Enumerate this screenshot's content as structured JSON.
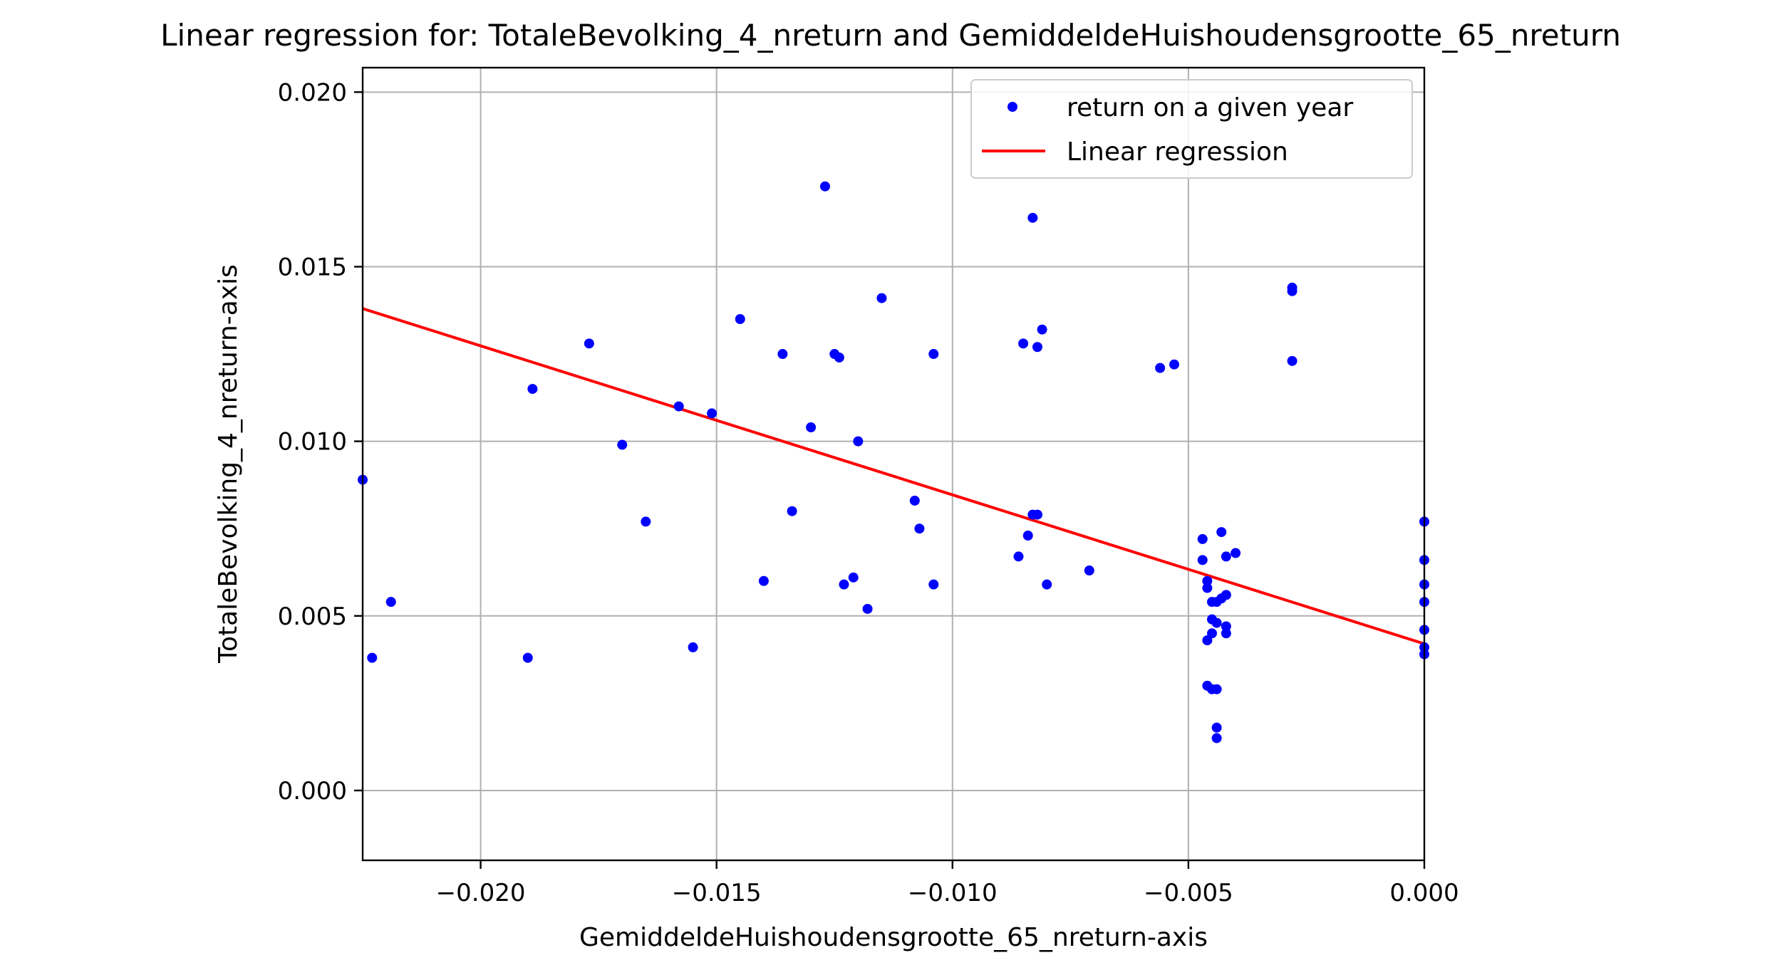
{
  "chart_data": {
    "type": "scatter",
    "title": "Linear regression for: TotaleBevolking_4_nreturn and GemiddeldeHuishoudensgrootte_65_nreturn",
    "xlabel": "GemiddeldeHuishoudensgrootte_65_nreturn-axis",
    "ylabel": "TotaleBevolking_4_nreturn-axis",
    "xlim": [
      -0.0225,
      0.0
    ],
    "ylim": [
      -0.002,
      0.0207
    ],
    "xticks": [
      -0.02,
      -0.015,
      -0.01,
      -0.005,
      0.0
    ],
    "xtick_labels": [
      "−0.020",
      "−0.015",
      "−0.010",
      "−0.005",
      "0.000"
    ],
    "yticks": [
      0.0,
      0.005,
      0.01,
      0.015,
      0.02
    ],
    "ytick_labels": [
      "0.000",
      "0.005",
      "0.010",
      "0.015",
      "0.020"
    ],
    "grid": true,
    "legend_position": "top-right",
    "colors": {
      "scatter": "#0000ff",
      "regression": "#ff0000",
      "grid": "#b0b0b0"
    },
    "series": [
      {
        "name": "return on a given year",
        "kind": "scatter",
        "points": [
          [
            -0.0225,
            0.0089
          ],
          [
            -0.0223,
            0.0038
          ],
          [
            -0.0219,
            0.0054
          ],
          [
            -0.019,
            0.0038
          ],
          [
            -0.0189,
            0.0115
          ],
          [
            -0.0177,
            0.0128
          ],
          [
            -0.017,
            0.0099
          ],
          [
            -0.0165,
            0.0077
          ],
          [
            -0.0158,
            0.011
          ],
          [
            -0.0155,
            0.0041
          ],
          [
            -0.0151,
            0.0108
          ],
          [
            -0.0145,
            0.0135
          ],
          [
            -0.014,
            0.006
          ],
          [
            -0.0136,
            0.0125
          ],
          [
            -0.0134,
            0.008
          ],
          [
            -0.013,
            0.0104
          ],
          [
            -0.0127,
            0.0173
          ],
          [
            -0.0125,
            0.0125
          ],
          [
            -0.0124,
            0.0124
          ],
          [
            -0.0123,
            0.0059
          ],
          [
            -0.0121,
            0.0061
          ],
          [
            -0.012,
            0.01
          ],
          [
            -0.0118,
            0.0052
          ],
          [
            -0.0115,
            0.0141
          ],
          [
            -0.0108,
            0.0083
          ],
          [
            -0.0107,
            0.0075
          ],
          [
            -0.0104,
            0.0125
          ],
          [
            -0.0104,
            0.0059
          ],
          [
            -0.0086,
            0.0067
          ],
          [
            -0.0085,
            0.0128
          ],
          [
            -0.0084,
            0.0073
          ],
          [
            -0.0083,
            0.0164
          ],
          [
            -0.0083,
            0.0079
          ],
          [
            -0.0082,
            0.0127
          ],
          [
            -0.0082,
            0.0079
          ],
          [
            -0.0081,
            0.0132
          ],
          [
            -0.008,
            0.0059
          ],
          [
            -0.0071,
            0.0063
          ],
          [
            -0.0056,
            0.0121
          ],
          [
            -0.0053,
            0.0122
          ],
          [
            -0.0047,
            0.0072
          ],
          [
            -0.0047,
            0.0066
          ],
          [
            -0.0046,
            0.006
          ],
          [
            -0.0046,
            0.0058
          ],
          [
            -0.0046,
            0.0043
          ],
          [
            -0.0046,
            0.003
          ],
          [
            -0.0045,
            0.0045
          ],
          [
            -0.0045,
            0.0054
          ],
          [
            -0.0045,
            0.0049
          ],
          [
            -0.0045,
            0.0029
          ],
          [
            -0.0044,
            0.0054
          ],
          [
            -0.0044,
            0.0018
          ],
          [
            -0.0044,
            0.0015
          ],
          [
            -0.0044,
            0.0029
          ],
          [
            -0.0044,
            0.0048
          ],
          [
            -0.0043,
            0.0074
          ],
          [
            -0.0043,
            0.0055
          ],
          [
            -0.0042,
            0.0056
          ],
          [
            -0.0042,
            0.0047
          ],
          [
            -0.0042,
            0.0045
          ],
          [
            -0.0042,
            0.0067
          ],
          [
            -0.004,
            0.0068
          ],
          [
            -0.0028,
            0.0144
          ],
          [
            -0.0028,
            0.0143
          ],
          [
            -0.0028,
            0.0123
          ],
          [
            0.0,
            0.0077
          ],
          [
            0.0,
            0.0066
          ],
          [
            0.0,
            0.0059
          ],
          [
            0.0,
            0.0054
          ],
          [
            0.0,
            0.0046
          ],
          [
            0.0,
            0.0041
          ],
          [
            0.0,
            0.0039
          ]
        ]
      },
      {
        "name": "Linear regression",
        "kind": "line",
        "points": [
          [
            -0.0225,
            0.0138
          ],
          [
            0.0,
            0.0042
          ]
        ]
      }
    ]
  }
}
